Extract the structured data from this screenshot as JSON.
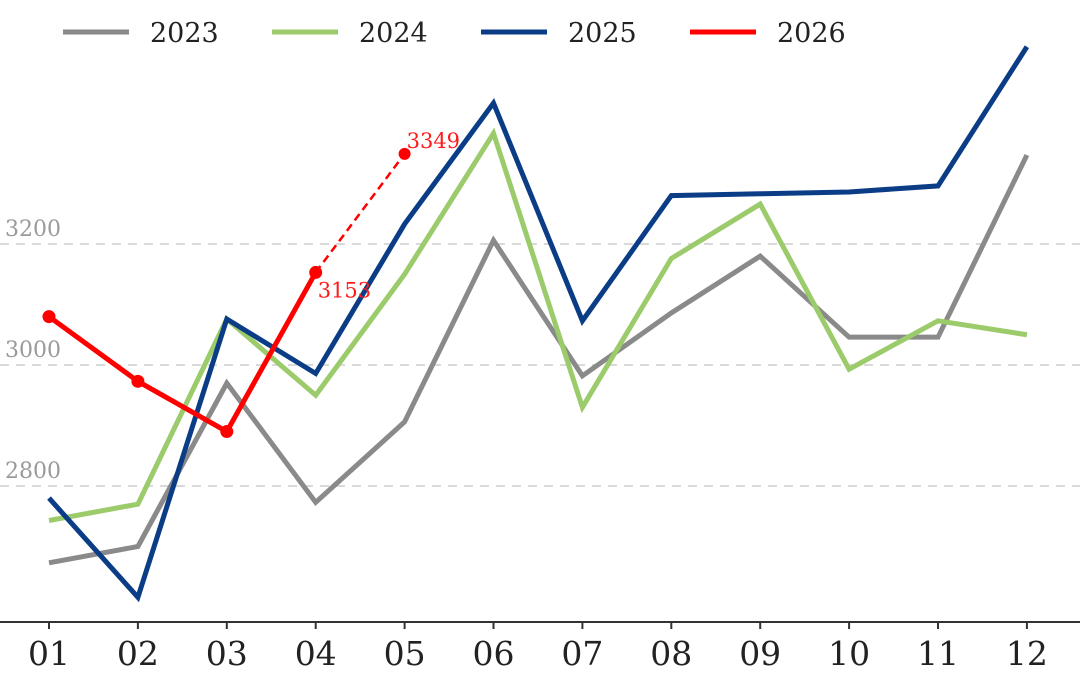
{
  "chart_data": {
    "type": "line",
    "categories": [
      "01",
      "02",
      "03",
      "04",
      "05",
      "06",
      "07",
      "08",
      "09",
      "10",
      "11",
      "12"
    ],
    "series": [
      {
        "name": "2023",
        "color": "#8a8a8a",
        "values": [
          2673,
          2700,
          2970,
          2773,
          2906,
          3206,
          2982,
          3086,
          3180,
          3046,
          3046,
          3347
        ]
      },
      {
        "name": "2024",
        "color": "#9bcb6b",
        "values": [
          2743,
          2770,
          3076,
          2950,
          3150,
          3383,
          2930,
          3176,
          3266,
          2993,
          3073,
          3050
        ]
      },
      {
        "name": "2025",
        "color": "#0b3d86",
        "values": [
          2780,
          2616,
          3076,
          2986,
          3233,
          3433,
          3073,
          3280,
          3283,
          3286,
          3296,
          3526
        ]
      },
      {
        "name": "2026",
        "color": "#ff0000",
        "values": [
          3080,
          2973,
          2890,
          3153,
          null,
          null,
          null,
          null,
          null,
          null,
          null,
          null
        ],
        "projection": {
          "from": "04",
          "to": "05",
          "values": [
            3153,
            3349
          ],
          "style": "dashed"
        }
      }
    ],
    "annotations": [
      {
        "category": "04",
        "value": 3153,
        "text": "3153"
      },
      {
        "category": "05",
        "value": 3349,
        "text": "3349"
      }
    ],
    "yticks": [
      "2800",
      "3000",
      "3200"
    ],
    "ylim": [
      2600,
      3620
    ],
    "grid": "horizontal dashed",
    "legend": "top"
  }
}
